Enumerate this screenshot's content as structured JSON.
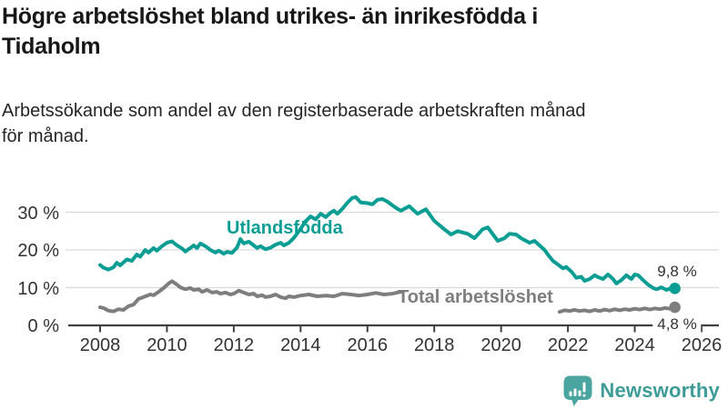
{
  "header": {
    "title": "Högre arbetslöshet bland utrikes- än inrikesfödda i\nTidaholm",
    "subtitle": "Arbetssökande som andel av den registerbaserade arbetskraften månad\nför månad."
  },
  "footer": {
    "brand": "Newsworthy",
    "logo_icon": "bar-chart-speech-bubble"
  },
  "colors": {
    "accent_teal": "#0A9D94",
    "series_gray": "#7E7E7E",
    "brand_teal": "#3D9C98",
    "logo_teal": "#4AA5A1",
    "grid": "#DADADA",
    "axis": "#404040",
    "text_dark": "#171717"
  },
  "chart_data": {
    "type": "line",
    "unit": "%",
    "x_unit": "year (monthly series)",
    "xlim": [
      2007.05,
      2026.5
    ],
    "ylim": [
      0,
      36
    ],
    "grid": "horizontal",
    "xticks": [
      2008,
      2010,
      2012,
      2014,
      2016,
      2018,
      2020,
      2022,
      2024,
      2026
    ],
    "ytick_values": [
      0,
      10,
      20,
      30
    ],
    "yticks": [
      "0 %",
      "10 %",
      "20 %",
      "30 %"
    ],
    "series": [
      {
        "name": "Utlandsfödda",
        "color": "#0A9D94",
        "end_label": "9,8 %",
        "end_value": 9.8,
        "segments": [
          [
            [
              2008.0,
              16.0
            ],
            [
              2008.1,
              15.3
            ],
            [
              2008.25,
              14.8
            ],
            [
              2008.4,
              15.4
            ],
            [
              2008.5,
              16.6
            ],
            [
              2008.6,
              15.9
            ],
            [
              2008.8,
              17.5
            ],
            [
              2008.95,
              17.1
            ],
            [
              2009.1,
              18.8
            ],
            [
              2009.2,
              18.2
            ],
            [
              2009.35,
              20.0
            ],
            [
              2009.45,
              19.3
            ],
            [
              2009.6,
              20.5
            ],
            [
              2009.7,
              19.8
            ],
            [
              2009.85,
              21.0
            ],
            [
              2010.0,
              21.9
            ],
            [
              2010.15,
              22.3
            ],
            [
              2010.3,
              21.2
            ],
            [
              2010.45,
              20.4
            ],
            [
              2010.55,
              19.6
            ],
            [
              2010.7,
              20.5
            ],
            [
              2010.8,
              21.2
            ],
            [
              2010.9,
              20.5
            ],
            [
              2011.0,
              21.7
            ],
            [
              2011.15,
              21.0
            ],
            [
              2011.3,
              20.0
            ],
            [
              2011.45,
              19.3
            ],
            [
              2011.55,
              19.8
            ],
            [
              2011.7,
              19.0
            ],
            [
              2011.8,
              19.5
            ],
            [
              2011.95,
              19.2
            ],
            [
              2012.1,
              20.7
            ],
            [
              2012.2,
              22.9
            ],
            [
              2012.3,
              21.7
            ],
            [
              2012.45,
              22.2
            ],
            [
              2012.6,
              21.2
            ],
            [
              2012.7,
              20.5
            ],
            [
              2012.8,
              21.0
            ],
            [
              2012.95,
              20.2
            ],
            [
              2013.1,
              20.6
            ],
            [
              2013.25,
              21.4
            ],
            [
              2013.4,
              21.9
            ],
            [
              2013.5,
              21.2
            ],
            [
              2013.65,
              21.9
            ],
            [
              2013.8,
              23.2
            ],
            [
              2014.0,
              25.6
            ],
            [
              2014.15,
              27.6
            ],
            [
              2014.3,
              28.9
            ],
            [
              2014.45,
              28.1
            ],
            [
              2014.6,
              29.6
            ],
            [
              2014.75,
              28.7
            ],
            [
              2014.9,
              29.9
            ],
            [
              2015.0,
              30.4
            ],
            [
              2015.1,
              29.6
            ],
            [
              2015.25,
              30.9
            ],
            [
              2015.4,
              32.5
            ],
            [
              2015.55,
              33.8
            ],
            [
              2015.65,
              34.0
            ],
            [
              2015.8,
              32.6
            ],
            [
              2016.0,
              32.4
            ],
            [
              2016.15,
              32.1
            ],
            [
              2016.3,
              33.3
            ],
            [
              2016.45,
              33.5
            ],
            [
              2016.6,
              32.8
            ],
            [
              2016.75,
              31.8
            ],
            [
              2016.9,
              30.9
            ],
            [
              2017.0,
              30.4
            ],
            [
              2017.25,
              31.6
            ],
            [
              2017.5,
              29.6
            ],
            [
              2017.75,
              30.8
            ],
            [
              2018.0,
              27.7
            ],
            [
              2018.3,
              25.5
            ],
            [
              2018.5,
              24.1
            ],
            [
              2018.7,
              25.0
            ],
            [
              2019.0,
              24.3
            ],
            [
              2019.2,
              23.1
            ],
            [
              2019.45,
              25.5
            ],
            [
              2019.6,
              26.0
            ],
            [
              2019.7,
              24.8
            ],
            [
              2019.9,
              22.4
            ],
            [
              2020.1,
              23.1
            ],
            [
              2020.25,
              24.3
            ],
            [
              2020.45,
              24.1
            ],
            [
              2020.6,
              23.1
            ],
            [
              2020.85,
              21.9
            ],
            [
              2021.0,
              22.4
            ],
            [
              2021.15,
              21.2
            ],
            [
              2021.3,
              20.0
            ],
            [
              2021.4,
              18.8
            ],
            [
              2021.55,
              17.1
            ],
            [
              2021.75,
              15.8
            ],
            [
              2021.85,
              15.1
            ],
            [
              2021.95,
              15.5
            ],
            [
              2022.1,
              14.3
            ],
            [
              2022.25,
              12.6
            ],
            [
              2022.4,
              12.9
            ],
            [
              2022.5,
              11.8
            ],
            [
              2022.65,
              12.3
            ],
            [
              2022.8,
              13.3
            ],
            [
              2022.9,
              12.8
            ],
            [
              2023.05,
              12.3
            ],
            [
              2023.2,
              13.5
            ],
            [
              2023.35,
              12.3
            ],
            [
              2023.45,
              11.1
            ],
            [
              2023.6,
              12.0
            ],
            [
              2023.75,
              13.3
            ],
            [
              2023.9,
              12.3
            ],
            [
              2024.0,
              13.5
            ],
            [
              2024.1,
              13.3
            ],
            [
              2024.25,
              12.0
            ],
            [
              2024.4,
              10.8
            ],
            [
              2024.55,
              9.9
            ],
            [
              2024.65,
              9.6
            ],
            [
              2024.8,
              10.1
            ],
            [
              2024.95,
              9.4
            ],
            [
              2025.1,
              9.9
            ],
            [
              2025.2,
              9.8
            ]
          ]
        ]
      },
      {
        "name": "Total arbetslöshet",
        "color": "#7E7E7E",
        "end_label": "4,8 %",
        "end_value": 4.8,
        "segments": [
          [
            [
              2008.0,
              4.8
            ],
            [
              2008.1,
              4.6
            ],
            [
              2008.25,
              3.9
            ],
            [
              2008.4,
              3.7
            ],
            [
              2008.55,
              4.3
            ],
            [
              2008.7,
              4.1
            ],
            [
              2008.85,
              5.1
            ],
            [
              2009.0,
              5.5
            ],
            [
              2009.15,
              7.0
            ],
            [
              2009.3,
              7.5
            ],
            [
              2009.5,
              8.2
            ],
            [
              2009.6,
              8.0
            ],
            [
              2009.75,
              8.9
            ],
            [
              2009.9,
              9.9
            ],
            [
              2010.05,
              11.1
            ],
            [
              2010.15,
              11.7
            ],
            [
              2010.3,
              10.8
            ],
            [
              2010.4,
              10.1
            ],
            [
              2010.55,
              9.6
            ],
            [
              2010.7,
              9.9
            ],
            [
              2010.8,
              9.4
            ],
            [
              2010.95,
              9.6
            ],
            [
              2011.05,
              8.9
            ],
            [
              2011.2,
              9.4
            ],
            [
              2011.35,
              8.7
            ],
            [
              2011.5,
              8.9
            ],
            [
              2011.6,
              8.4
            ],
            [
              2011.75,
              8.7
            ],
            [
              2011.9,
              8.2
            ],
            [
              2012.0,
              8.4
            ],
            [
              2012.15,
              9.2
            ],
            [
              2012.3,
              8.7
            ],
            [
              2012.45,
              8.2
            ],
            [
              2012.6,
              8.4
            ],
            [
              2012.7,
              7.7
            ],
            [
              2012.85,
              8.0
            ],
            [
              2012.95,
              7.5
            ],
            [
              2013.1,
              7.7
            ],
            [
              2013.25,
              8.2
            ],
            [
              2013.4,
              7.5
            ],
            [
              2013.55,
              7.2
            ],
            [
              2013.65,
              7.7
            ],
            [
              2013.8,
              7.5
            ],
            [
              2014.0,
              7.9
            ],
            [
              2014.25,
              8.2
            ],
            [
              2014.5,
              7.7
            ],
            [
              2014.75,
              7.9
            ],
            [
              2015.0,
              7.7
            ],
            [
              2015.25,
              8.4
            ],
            [
              2015.5,
              8.2
            ],
            [
              2015.75,
              7.9
            ],
            [
              2016.0,
              8.2
            ],
            [
              2016.25,
              8.6
            ],
            [
              2016.5,
              8.2
            ],
            [
              2016.75,
              8.4
            ],
            [
              2017.0,
              8.9
            ]
          ],
          [
            [
              2021.75,
              3.6
            ],
            [
              2021.9,
              4.0
            ],
            [
              2022.05,
              3.8
            ],
            [
              2022.2,
              4.1
            ],
            [
              2022.35,
              3.8
            ],
            [
              2022.5,
              4.0
            ],
            [
              2022.65,
              3.7
            ],
            [
              2022.8,
              4.1
            ],
            [
              2022.95,
              3.8
            ],
            [
              2023.1,
              4.2
            ],
            [
              2023.25,
              3.9
            ],
            [
              2023.4,
              4.3
            ],
            [
              2023.55,
              4.0
            ],
            [
              2023.7,
              4.3
            ],
            [
              2023.85,
              4.1
            ],
            [
              2024.0,
              4.4
            ],
            [
              2024.15,
              4.2
            ],
            [
              2024.3,
              4.5
            ],
            [
              2024.45,
              4.2
            ],
            [
              2024.6,
              4.5
            ],
            [
              2024.75,
              4.3
            ],
            [
              2024.9,
              4.6
            ],
            [
              2025.05,
              4.4
            ],
            [
              2025.2,
              4.8
            ]
          ]
        ]
      }
    ]
  }
}
